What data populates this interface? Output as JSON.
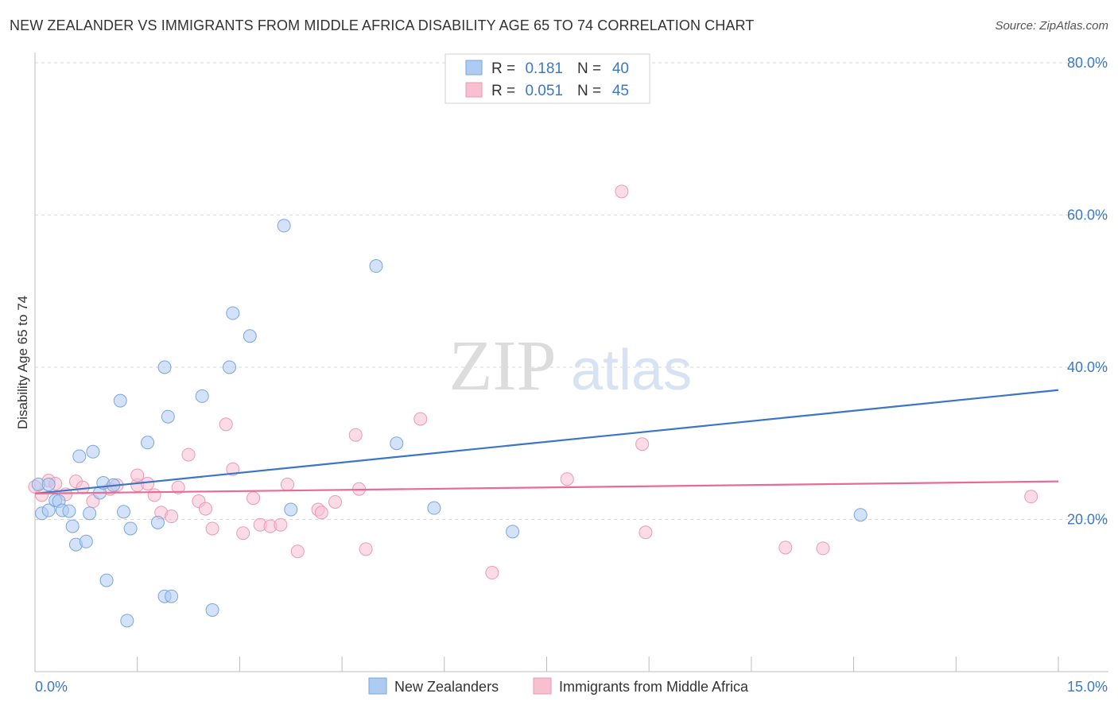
{
  "title": "NEW ZEALANDER VS IMMIGRANTS FROM MIDDLE AFRICA DISABILITY AGE 65 TO 74 CORRELATION CHART",
  "source": "Source: ZipAtlas.com",
  "watermark": {
    "zip": "ZIP",
    "atlas": "atlas"
  },
  "legend": {
    "r_label": "R =",
    "n_label": "N =",
    "rows": [
      {
        "r": "0.181",
        "n": "40",
        "color": "#aecbf2"
      },
      {
        "r": "0.051",
        "n": "45",
        "color": "#f8bfd1"
      }
    ]
  },
  "colors": {
    "blue_line": "#3a76c8",
    "pink_line": "#e66c93",
    "blue_fill": "#aecbf2",
    "pink_fill": "#f8bfd1",
    "tick_text": "#3b78c6"
  },
  "chart_data": {
    "type": "scatter",
    "title": "NEW ZEALANDER VS IMMIGRANTS FROM MIDDLE AFRICA DISABILITY AGE 65 TO 74 CORRELATION CHART",
    "xlabel": "",
    "ylabel": "Disability Age 65 to 74",
    "xlim": [
      0,
      15
    ],
    "ylim": [
      0,
      80
    ],
    "x_tick_labels": [
      "0.0%",
      "15.0%"
    ],
    "y_tick_labels": [
      "20.0%",
      "40.0%",
      "60.0%",
      "80.0%"
    ],
    "y_ticks": [
      20,
      40,
      60,
      80
    ],
    "grid": true,
    "legend_position": "top-center",
    "series": [
      {
        "name": "New Zealanders",
        "r": 0.181,
        "n": 40,
        "trend": [
          [
            0,
            23.4
          ],
          [
            15,
            37.0
          ]
        ],
        "points": [
          [
            0.05,
            24.6
          ],
          [
            0.1,
            20.8
          ],
          [
            0.2,
            21.2
          ],
          [
            0.2,
            24.6
          ],
          [
            0.3,
            22.5
          ],
          [
            0.35,
            22.4
          ],
          [
            0.4,
            21.2
          ],
          [
            0.5,
            21.1
          ],
          [
            0.55,
            19.1
          ],
          [
            0.6,
            16.7
          ],
          [
            0.65,
            28.3
          ],
          [
            0.75,
            17.1
          ],
          [
            0.8,
            20.8
          ],
          [
            0.85,
            28.9
          ],
          [
            0.95,
            23.5
          ],
          [
            1.0,
            24.8
          ],
          [
            1.05,
            12.0
          ],
          [
            1.15,
            24.5
          ],
          [
            1.25,
            35.6
          ],
          [
            1.3,
            21.0
          ],
          [
            1.35,
            6.7
          ],
          [
            1.4,
            18.8
          ],
          [
            1.65,
            30.1
          ],
          [
            1.8,
            19.6
          ],
          [
            1.9,
            40.0
          ],
          [
            1.9,
            9.9
          ],
          [
            1.95,
            33.5
          ],
          [
            2.0,
            9.9
          ],
          [
            2.45,
            36.2
          ],
          [
            2.6,
            8.1
          ],
          [
            2.85,
            40.0
          ],
          [
            2.9,
            47.1
          ],
          [
            3.15,
            44.1
          ],
          [
            3.65,
            58.6
          ],
          [
            3.75,
            21.3
          ],
          [
            5.0,
            53.3
          ],
          [
            5.3,
            30.0
          ],
          [
            5.85,
            21.5
          ],
          [
            7.0,
            18.4
          ],
          [
            12.1,
            20.6
          ]
        ]
      },
      {
        "name": "Immigrants from Middle Africa",
        "r": 0.051,
        "n": 45,
        "trend": [
          [
            0,
            23.4
          ],
          [
            15,
            25.0
          ]
        ],
        "points": [
          [
            0.0,
            24.3
          ],
          [
            0.1,
            23.2
          ],
          [
            0.2,
            25.1
          ],
          [
            0.3,
            24.7
          ],
          [
            0.45,
            23.3
          ],
          [
            0.6,
            25.0
          ],
          [
            0.7,
            24.2
          ],
          [
            0.85,
            22.4
          ],
          [
            1.1,
            24.0
          ],
          [
            1.2,
            24.5
          ],
          [
            1.5,
            24.5
          ],
          [
            1.5,
            25.8
          ],
          [
            1.65,
            24.7
          ],
          [
            1.75,
            23.2
          ],
          [
            1.85,
            20.9
          ],
          [
            2.0,
            20.4
          ],
          [
            2.1,
            24.2
          ],
          [
            2.25,
            28.5
          ],
          [
            2.4,
            22.4
          ],
          [
            2.5,
            21.4
          ],
          [
            2.6,
            18.8
          ],
          [
            2.8,
            32.5
          ],
          [
            2.9,
            26.6
          ],
          [
            3.05,
            18.2
          ],
          [
            3.2,
            22.8
          ],
          [
            3.3,
            19.3
          ],
          [
            3.45,
            19.1
          ],
          [
            3.6,
            19.3
          ],
          [
            3.7,
            24.6
          ],
          [
            3.85,
            15.8
          ],
          [
            4.15,
            21.3
          ],
          [
            4.2,
            20.9
          ],
          [
            4.4,
            22.3
          ],
          [
            4.7,
            31.1
          ],
          [
            4.75,
            24.0
          ],
          [
            4.85,
            16.1
          ],
          [
            5.65,
            33.2
          ],
          [
            6.7,
            13.0
          ],
          [
            7.8,
            25.3
          ],
          [
            8.6,
            63.1
          ],
          [
            8.9,
            29.9
          ],
          [
            8.95,
            18.3
          ],
          [
            11.0,
            16.3
          ],
          [
            11.55,
            16.2
          ],
          [
            14.6,
            23.0
          ]
        ]
      }
    ]
  }
}
